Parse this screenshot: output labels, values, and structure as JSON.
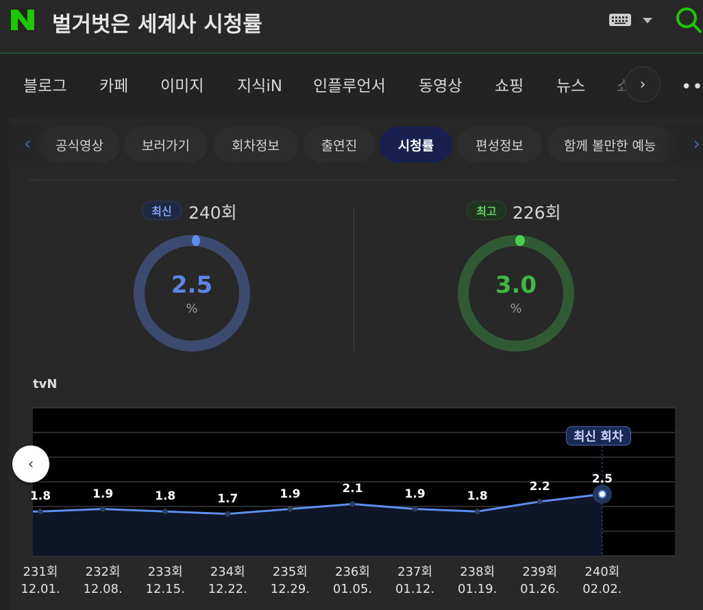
{
  "header": {
    "logo_letter": "N",
    "query": "벌거벗은 세계사 시청률",
    "keyboard_icon": "keyboard-icon",
    "search_icon": "search-icon",
    "brand_color": "#1ec800"
  },
  "search_tabs": {
    "items": [
      "블로그",
      "카페",
      "이미지",
      "지식iN",
      "인플루언서",
      "동영상",
      "쇼핑",
      "뉴스",
      "쇼"
    ],
    "more_label": "•••"
  },
  "subtabs": {
    "items": [
      "공식영상",
      "보러가기",
      "회차정보",
      "출연진",
      "시청률",
      "편성정보",
      "함께 볼만한 예능"
    ],
    "active": "시청률"
  },
  "latest": {
    "badge": "최신",
    "episode": "240회",
    "value": "2.5",
    "unit": "%",
    "ring_fraction": 1.0,
    "color": "#5b86e5"
  },
  "highest": {
    "badge": "최고",
    "episode": "226회",
    "value": "3.0",
    "unit": "%",
    "ring_fraction": 1.0,
    "color": "#3fb83f"
  },
  "channel": "tvN",
  "latest_tag": "최신 회차",
  "chart_data": {
    "type": "line",
    "categories": [
      "231회",
      "232회",
      "233회",
      "234회",
      "235회",
      "236회",
      "237회",
      "238회",
      "239회",
      "240회"
    ],
    "dates": [
      "12.01.",
      "12.08.",
      "12.15.",
      "12.22.",
      "12.29.",
      "01.05.",
      "01.12.",
      "01.19.",
      "01.26.",
      "02.02."
    ],
    "values": [
      1.8,
      1.9,
      1.8,
      1.7,
      1.9,
      2.1,
      1.9,
      1.8,
      2.2,
      2.5
    ],
    "value_labels": [
      "1.8",
      "1.9",
      "1.8",
      "1.7",
      "1.9",
      "2.1",
      "1.9",
      "1.8",
      "2.2",
      "2.5"
    ],
    "ylim": [
      0,
      6
    ],
    "grid": true,
    "series_color": "#5b8ff0"
  }
}
